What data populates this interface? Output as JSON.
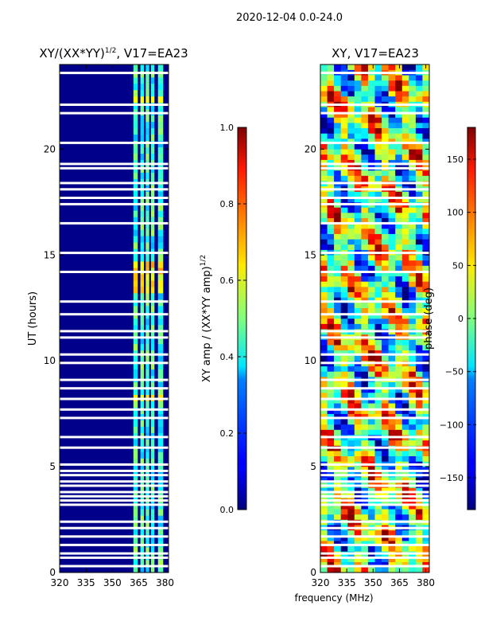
{
  "suptitle": "2020-12-04 0.0-24.0",
  "chart_data": [
    {
      "type": "heatmap",
      "title": "XY/(XX*YY)",
      "title_sup": "1/2",
      "title_suffix": ", V17=EA23",
      "xlabel": "",
      "ylabel": "UT (hours)",
      "xlim": [
        320,
        382
      ],
      "ylim": [
        0,
        24
      ],
      "xticks": [
        320,
        335,
        350,
        365,
        380
      ],
      "yticks": [
        0,
        5,
        10,
        15,
        20
      ],
      "colormap": "jet",
      "colorbar": {
        "label": "XY amp / (XX*YY amp)",
        "label_sup": "1/2",
        "range": [
          0.0,
          1.0
        ],
        "ticks": [
          0.0,
          0.2,
          0.4,
          0.6,
          0.8,
          1.0
        ],
        "tick_labels": [
          "0.0",
          "0.2",
          "0.4",
          "0.6",
          "0.8",
          "1.0"
        ]
      },
      "description": "mostly low amplitude below 360 MHz, elevated 0.2-0.7 in bands near 362-381 MHz"
    },
    {
      "type": "heatmap",
      "title": "XY, V17=EA23",
      "xlabel": "frequency (MHz)",
      "ylabel": "",
      "xlim": [
        320,
        382
      ],
      "ylim": [
        0,
        24
      ],
      "xticks": [
        320,
        335,
        350,
        365,
        380
      ],
      "yticks": [
        0,
        5,
        10,
        15,
        20
      ],
      "colormap": "jet",
      "colorbar": {
        "label": "phase (deg)",
        "range": [
          -180,
          180
        ],
        "ticks": [
          -150,
          -100,
          -50,
          0,
          50,
          100,
          150
        ],
        "tick_labels": [
          "−150",
          "−100",
          "−50",
          "0",
          "50",
          "100",
          "150"
        ]
      },
      "description": "phase varies across full range"
    }
  ]
}
